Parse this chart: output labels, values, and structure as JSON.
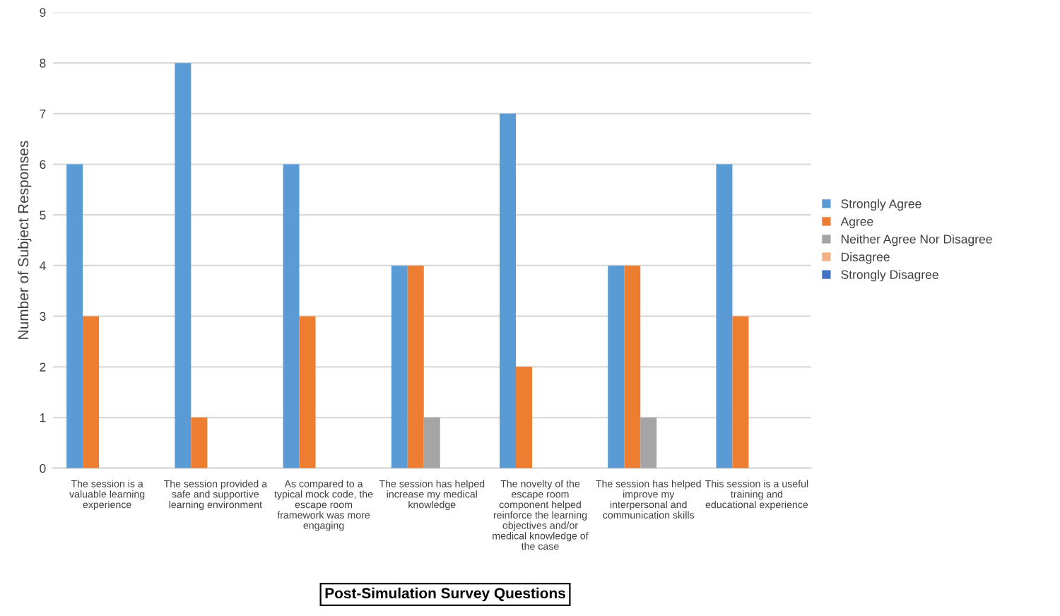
{
  "chart_data": {
    "type": "bar",
    "xlabel": "Post-Simulation Survey Questions",
    "ylabel": "Number of Subject Responses",
    "categories": [
      "The session is a\nvaluable learning\nexperience",
      "The session provided a\nsafe and supportive\nlearning environment",
      "As compared to a\ntypical mock code, the\nescape room\nframework was more\nengaging",
      "The session has helped\nincrease my medical\nknowledge",
      "The novelty of the\nescape room\ncomponent helped\nreinforce the learning\nobjectives and/or\nmedical knowledge of\nthe case",
      "The session has helped\nimprove my\ninterpersonal and\ncommunication skills",
      "This session is a useful\ntraining and\neducational experience"
    ],
    "series": [
      {
        "name": "Strongly Agree",
        "color": "#5b9bd5",
        "values": [
          6,
          8,
          6,
          4,
          7,
          4,
          6
        ]
      },
      {
        "name": "Agree",
        "color": "#ed7d31",
        "values": [
          3,
          1,
          3,
          4,
          2,
          4,
          3
        ]
      },
      {
        "name": "Neither Agree Nor Disagree",
        "color": "#a5a5a5",
        "values": [
          0,
          0,
          0,
          1,
          0,
          1,
          0
        ]
      },
      {
        "name": "Disagree",
        "color": "#f4b183",
        "values": [
          0,
          0,
          0,
          0,
          0,
          0,
          0
        ]
      },
      {
        "name": "Strongly Disagree",
        "color": "#4472c4",
        "values": [
          0,
          0,
          0,
          0,
          0,
          0,
          0
        ]
      }
    ],
    "ylim": [
      0,
      9
    ],
    "yticks": [
      0,
      1,
      2,
      3,
      4,
      5,
      6,
      7,
      8,
      9
    ],
    "grid": "y",
    "legend": "right"
  }
}
